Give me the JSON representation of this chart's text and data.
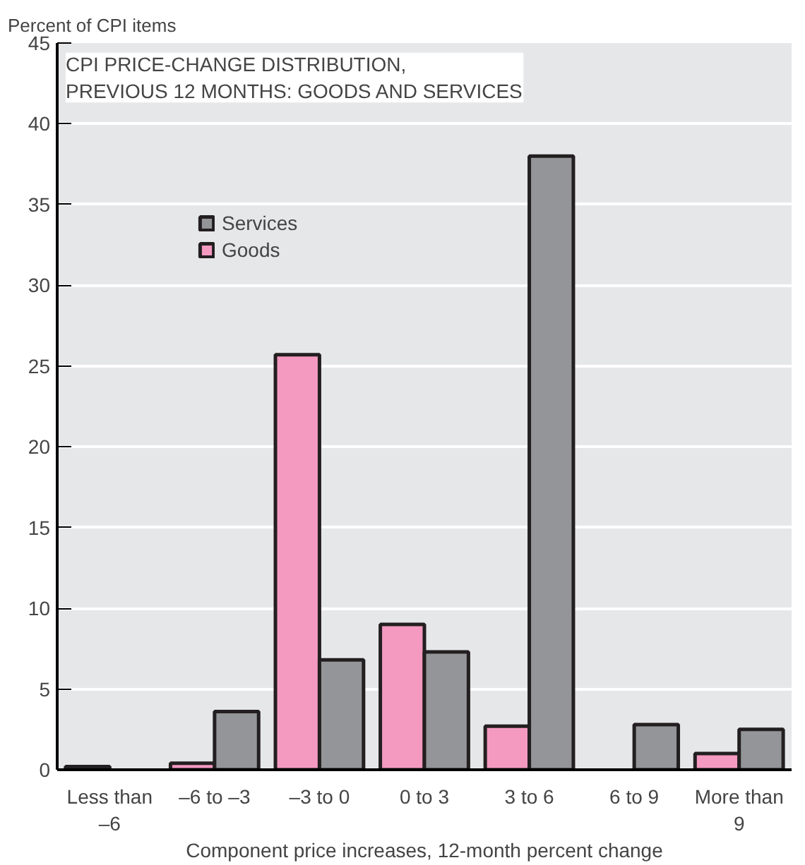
{
  "chart_data": {
    "type": "bar",
    "title": "CPI PRICE-CHANGE DISTRIBUTION,\nPREVIOUS 12 MONTHS: GOODS AND SERVICES",
    "ylabel": "Percent of CPI items",
    "xlabel": "Component price increases, 12-month percent change",
    "categories": [
      "Less than –6",
      "–6 to –3",
      "–3 to 0",
      "0 to 3",
      "3 to 6",
      "6 to 9",
      "More than 9"
    ],
    "series": [
      {
        "name": "Goods",
        "color": "#f49ac1",
        "values": [
          0.2,
          0.4,
          25.7,
          9.0,
          2.7,
          null,
          1.0
        ]
      },
      {
        "name": "Services",
        "color": "#939598",
        "values": [
          null,
          3.6,
          6.8,
          7.3,
          38.0,
          2.8,
          2.5
        ]
      }
    ],
    "ylim": [
      0,
      45
    ],
    "yticks": [
      0,
      5,
      10,
      15,
      20,
      25,
      30,
      35,
      40,
      45
    ],
    "grid": "y",
    "legend": "top left"
  }
}
